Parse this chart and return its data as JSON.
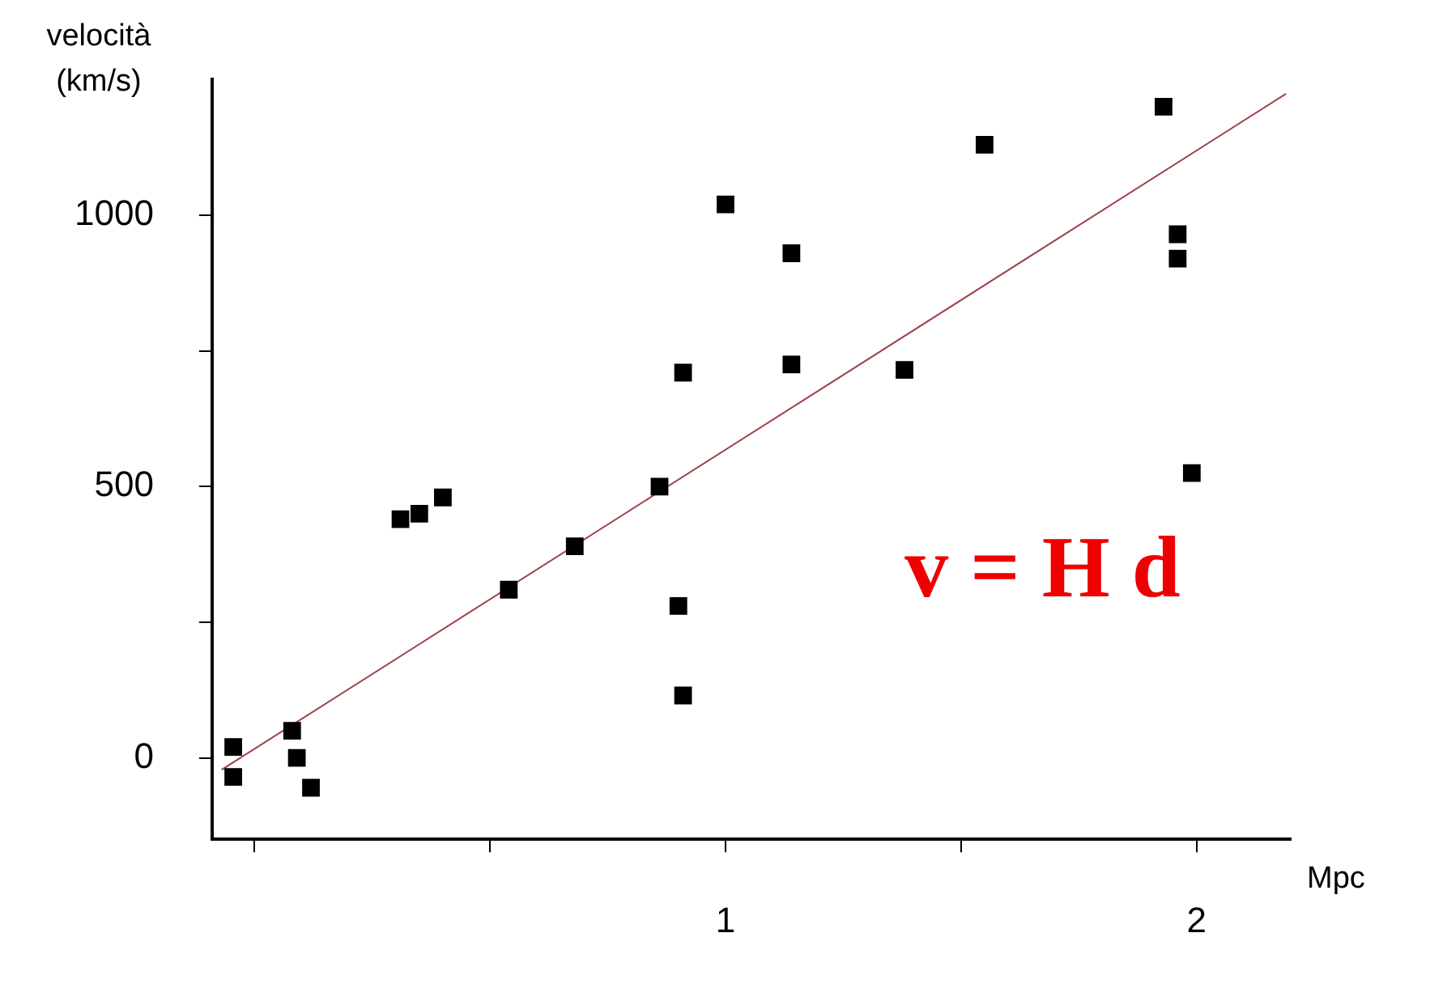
{
  "chart_data": {
    "type": "scatter",
    "xlabel": "Mpc",
    "ylabel": "velocità (km/s)",
    "xlim": [
      -0.09,
      2.2
    ],
    "ylim": [
      -150,
      1250
    ],
    "xticks": [
      {
        "value": 0,
        "label": null
      },
      {
        "value": 0.5,
        "label": null
      },
      1,
      {
        "value": 1.5,
        "label": null
      },
      2
    ],
    "yticks": [
      0,
      {
        "value": 250,
        "label": null
      },
      500,
      {
        "value": 750,
        "label": null
      },
      1000
    ],
    "grid": false,
    "legend": false,
    "marker": "square",
    "annotations": [
      "v = H d"
    ],
    "series": [
      {
        "color": "#000000",
        "x": [
          -0.045,
          -0.045,
          0.08,
          0.09,
          0.12,
          0.31,
          0.35,
          0.4,
          0.54,
          0.68,
          0.86,
          0.9,
          0.91,
          1.0,
          0.91,
          1.14,
          1.14,
          1.38,
          1.55,
          1.93,
          1.96,
          1.96,
          1.99
        ],
        "values": [
          20,
          -35,
          50,
          0,
          -55,
          440,
          450,
          480,
          310,
          390,
          500,
          280,
          115,
          1020,
          710,
          930,
          725,
          715,
          1130,
          1200,
          965,
          920,
          525
        ]
      },
      {
        "type": "line",
        "color": "#a04048",
        "marker": "none",
        "line_style": "solid",
        "x": [
          -0.07,
          2.19
        ],
        "values": [
          -22,
          1224
        ]
      }
    ]
  }
}
